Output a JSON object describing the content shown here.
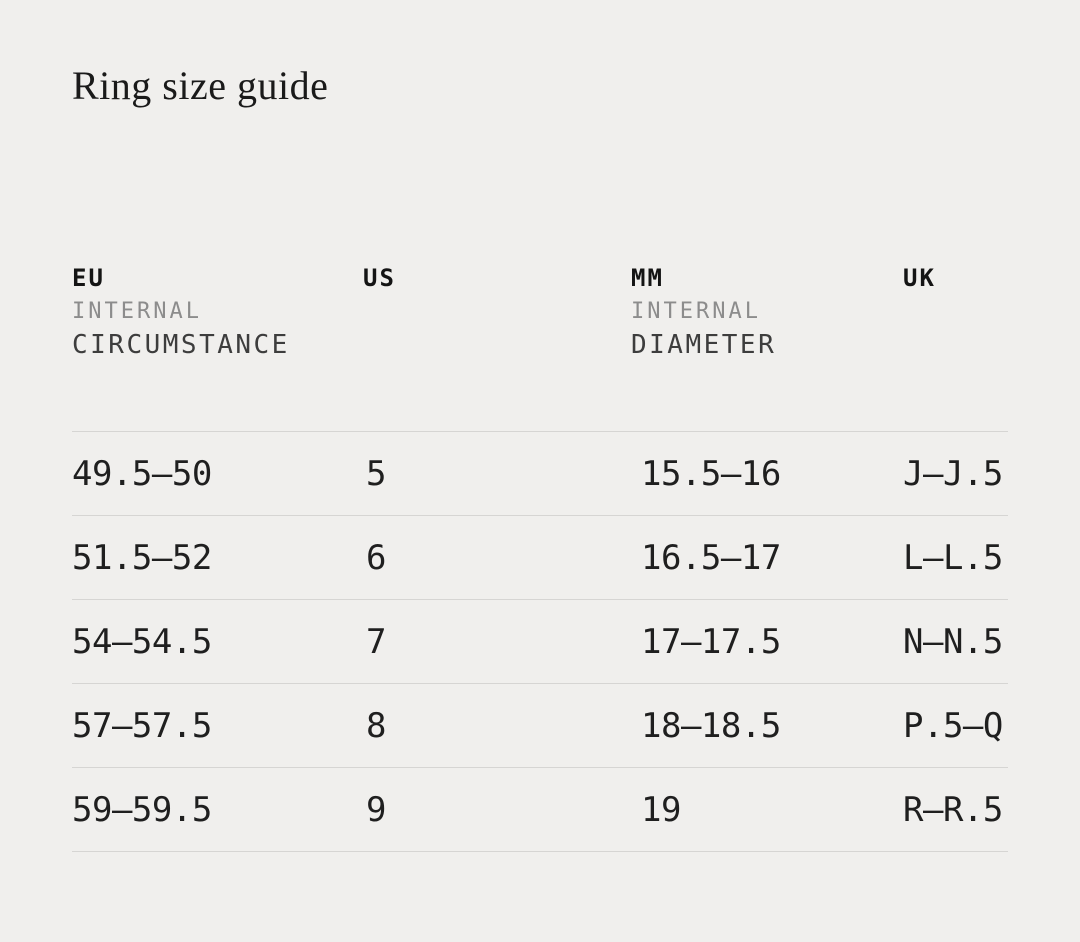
{
  "page": {
    "title": "Ring size guide"
  },
  "theme": {
    "background": "#f0efed",
    "title_color": "#1a1a1a",
    "value_color": "#1f1f1f",
    "header_code_color": "#141414",
    "header_sub1_color": "#8c8c8c",
    "header_sub2_color": "#3d3d3d",
    "divider_color": "#d6d5d3"
  },
  "table": {
    "column_keys": [
      "eu",
      "us",
      "mm",
      "uk"
    ],
    "headers": [
      {
        "code": "EU",
        "line1": "INTERNAL",
        "line2": "CIRCUMSTANCE"
      },
      {
        "code": "US",
        "line1": "",
        "line2": ""
      },
      {
        "code": "MM",
        "line1": "INTERNAL",
        "line2": "DIAMETER"
      },
      {
        "code": "UK",
        "line1": "",
        "line2": ""
      }
    ],
    "rows": [
      {
        "eu": "49.5—50",
        "us": "5",
        "mm": "15.5—16",
        "uk": "J—J.5"
      },
      {
        "eu": "51.5—52",
        "us": "6",
        "mm": "16.5—17",
        "uk": "L—L.5"
      },
      {
        "eu": "54—54.5",
        "us": "7",
        "mm": "17—17.5",
        "uk": "N—N.5"
      },
      {
        "eu": "57—57.5",
        "us": "8",
        "mm": "18—18.5",
        "uk": "P.5—Q"
      },
      {
        "eu": "59—59.5",
        "us": "9",
        "mm": "19",
        "uk": "R—R.5"
      }
    ]
  }
}
